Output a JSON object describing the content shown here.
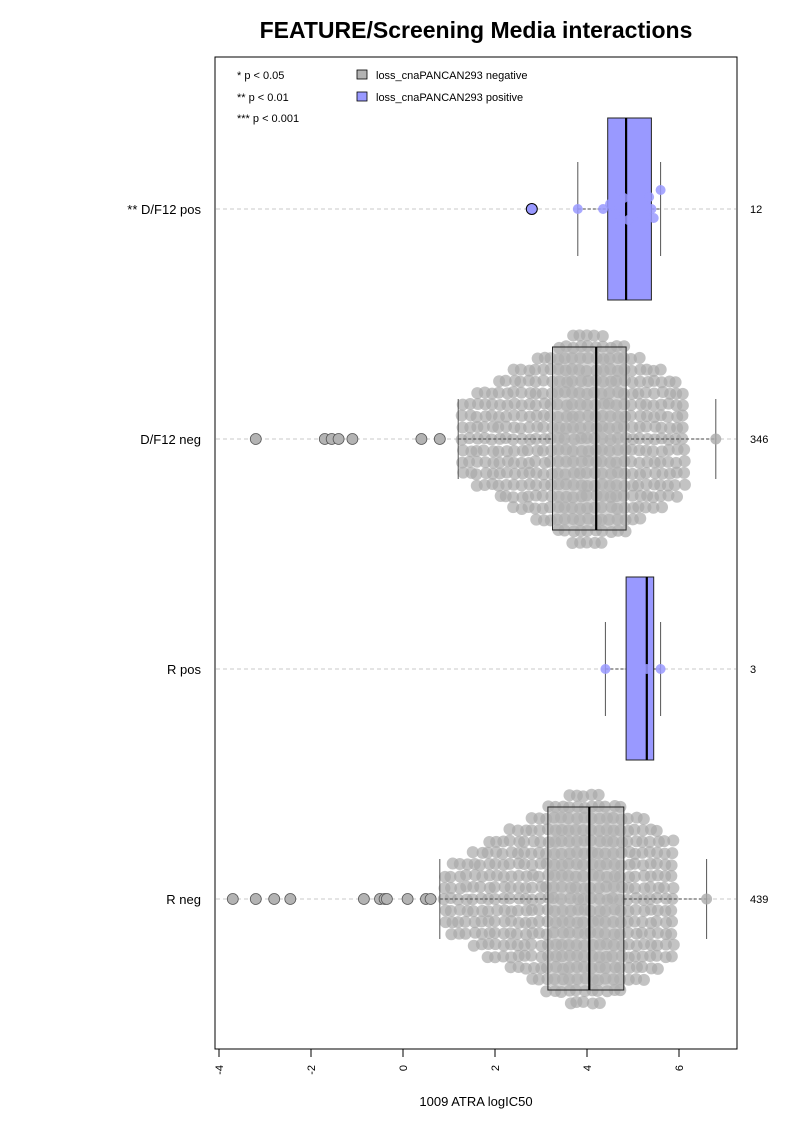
{
  "chart_data": {
    "type": "box",
    "title": "FEATURE/Screening Media interactions",
    "xlabel": "1009 ATRA logIC50",
    "xlim": [
      -4.2,
      7.1
    ],
    "x_ticks": [
      "-4",
      "-2",
      "0",
      "2",
      "4",
      "6"
    ],
    "x_tick_values": [
      -4,
      -2,
      0,
      2,
      4,
      6
    ],
    "significance_legend": [
      "* p < 0.05",
      "** p < 0.01",
      "*** p < 0.001"
    ],
    "legend": [
      {
        "name": "loss_cnaPANCAN293 negative",
        "color": "#b3b3b3"
      },
      {
        "name": "loss_cnaPANCAN293 positive",
        "color": "#9999ff"
      }
    ],
    "groups": [
      {
        "label": "** D/F12 pos",
        "n": "12",
        "kind": "positive",
        "whisker": [
          3.8,
          5.6
        ],
        "q1": 4.45,
        "median": 4.85,
        "q3": 5.4,
        "points": [
          2.8,
          3.8,
          4.35,
          4.5,
          4.6,
          4.8,
          4.9,
          5.0,
          5.35,
          5.4,
          5.45,
          5.6
        ],
        "outliers": [
          2.8
        ]
      },
      {
        "label": "D/F12 neg",
        "n": "346",
        "kind": "negative",
        "whisker": [
          1.2,
          6.8
        ],
        "q1": 3.25,
        "median": 4.2,
        "q3": 4.85,
        "points_low": [
          -3.2,
          -1.7,
          -1.55,
          -1.4,
          -1.1,
          0.4,
          0.8
        ]
      },
      {
        "label": "R pos",
        "n": "3",
        "kind": "positive",
        "whisker": [
          4.4,
          5.6
        ],
        "q1": 4.85,
        "median": 5.3,
        "q3": 5.45,
        "points": [
          4.4,
          5.3,
          5.6
        ]
      },
      {
        "label": "R neg",
        "n": "439",
        "kind": "negative",
        "whisker": [
          0.8,
          6.6
        ],
        "q1": 3.15,
        "median": 4.05,
        "q3": 4.8,
        "points_low": [
          -3.7,
          -3.2,
          -2.8,
          -2.45,
          -0.85,
          -0.5,
          -0.4,
          -0.35,
          0.1,
          0.5,
          0.6
        ]
      }
    ]
  }
}
